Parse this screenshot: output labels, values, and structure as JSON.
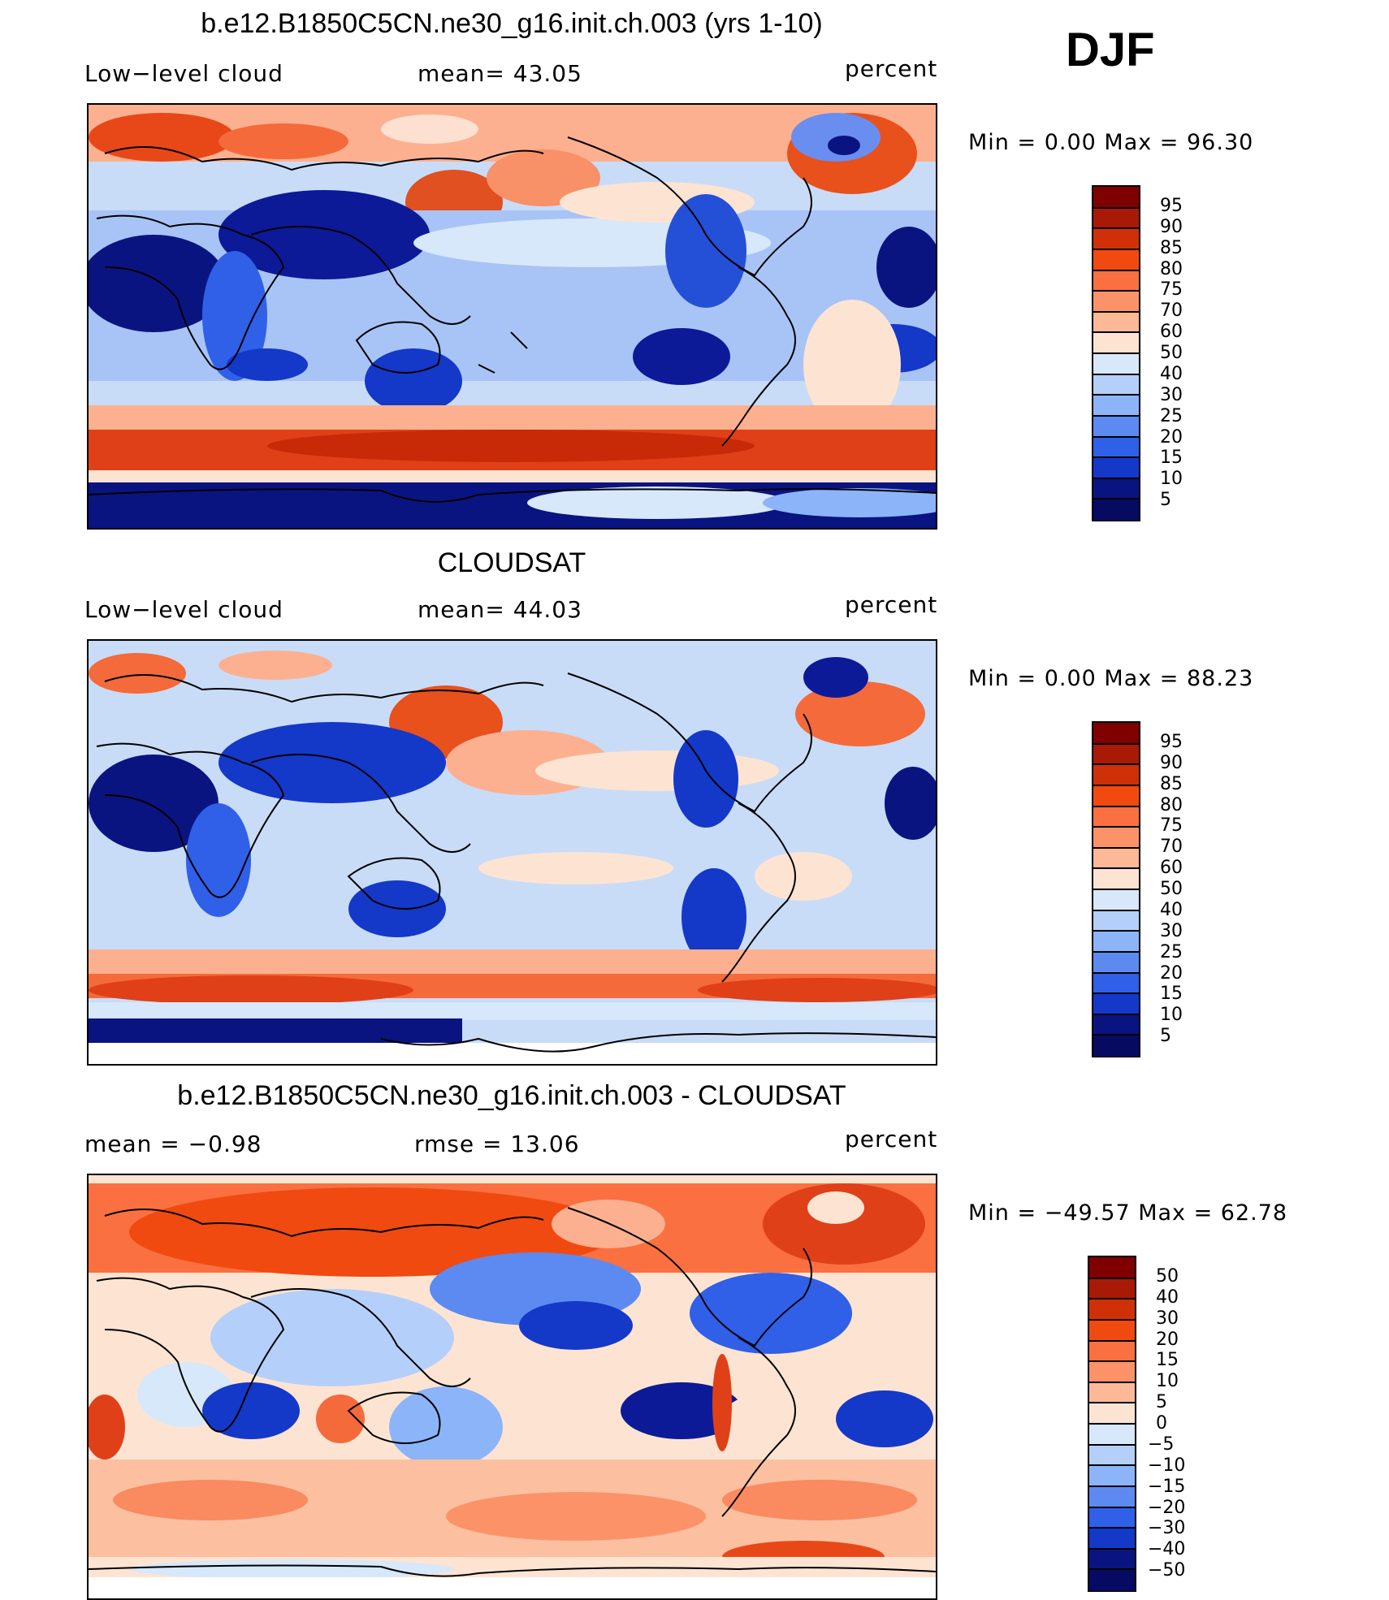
{
  "season": "DJF",
  "panels": [
    {
      "title": "b.e12.B1850C5CN.ne30_g16.init.ch.003 (yrs 1-10)",
      "left_label": "Low−level cloud",
      "center_label": "mean=   43.05",
      "units": "percent",
      "minmax": "Min  =     0.00  Max  =    96.30",
      "colorbar": {
        "labels": [
          "95",
          "90",
          "85",
          "80",
          "75",
          "70",
          "60",
          "50",
          "40",
          "30",
          "25",
          "20",
          "15",
          "10",
          "5"
        ],
        "colors": [
          "#800000",
          "#a81a06",
          "#d03008",
          "#f04a10",
          "#fa7040",
          "#fc9268",
          "#fdb898",
          "#fde4d2",
          "#d6e8fa",
          "#b4cffa",
          "#8cb4f8",
          "#5c8af0",
          "#3060e8",
          "#1438c8",
          "#0a1480",
          "#060a60"
        ]
      }
    },
    {
      "title": "CLOUDSAT",
      "left_label": "Low−level cloud",
      "center_label": "mean=   44.03",
      "units": "percent",
      "minmax": "Min  =     0.00  Max  =    88.23",
      "colorbar": {
        "labels": [
          "95",
          "90",
          "85",
          "80",
          "75",
          "70",
          "60",
          "50",
          "40",
          "30",
          "25",
          "20",
          "15",
          "10",
          "5"
        ],
        "colors": [
          "#800000",
          "#a81a06",
          "#d03008",
          "#f04a10",
          "#fa7040",
          "#fc9268",
          "#fdb898",
          "#fde4d2",
          "#d6e8fa",
          "#b4cffa",
          "#8cb4f8",
          "#5c8af0",
          "#3060e8",
          "#1438c8",
          "#0a1480",
          "#060a60"
        ]
      }
    },
    {
      "title": "b.e12.B1850C5CN.ne30_g16.init.ch.003 - CLOUDSAT",
      "left_label": "mean  =    −0.98",
      "center_label": "rmse  =    13.06",
      "units": "percent",
      "minmax": "Min  = −49.57  Max  =    62.78",
      "colorbar": {
        "labels": [
          "50",
          "40",
          "30",
          "20",
          "15",
          "10",
          "5",
          "0",
          "−5",
          "−10",
          "−15",
          "−20",
          "−30",
          "−40",
          "−50"
        ],
        "colors": [
          "#800000",
          "#a81a06",
          "#d03008",
          "#f04a10",
          "#fa7040",
          "#fc9268",
          "#fdb898",
          "#fde4d2",
          "#d6e8fa",
          "#b4cffa",
          "#8cb4f8",
          "#5c8af0",
          "#3060e8",
          "#1438c8",
          "#0a1480",
          "#060a60"
        ]
      }
    }
  ]
}
